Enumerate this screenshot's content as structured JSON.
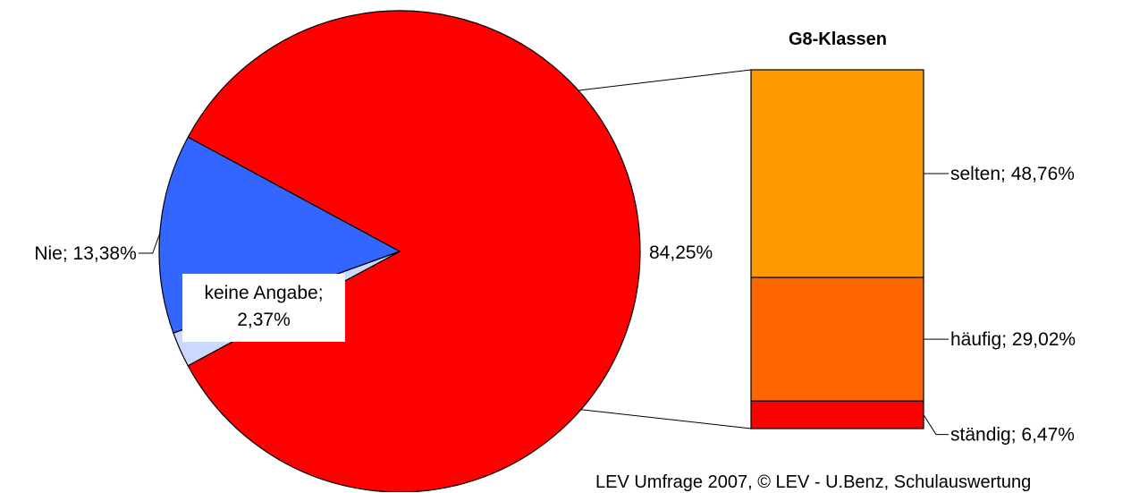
{
  "chart_data": {
    "type": "bar-of-pie",
    "pie": {
      "slices": [
        {
          "label": "",
          "value": 84.25,
          "display": "84,25%",
          "color": "#ff0000"
        },
        {
          "label": "keine Angabe",
          "value": 2.37,
          "display": "keine Angabe;\n2,37%",
          "color": "#ccd9ff"
        },
        {
          "label": "Nie",
          "value": 13.38,
          "display": "Nie; 13,38%",
          "color": "#3366ff"
        }
      ]
    },
    "bar": {
      "title": "G8-Klassen",
      "segments": [
        {
          "label": "selten",
          "value": 48.76,
          "display": "selten; 48,76%",
          "color": "#ff9900"
        },
        {
          "label": "häufig",
          "value": 29.02,
          "display": "häufig; 29,02%",
          "color": "#ff6600"
        },
        {
          "label": "ständig",
          "value": 6.47,
          "display": "ständig; 6,47%",
          "color": "#ff0000"
        }
      ]
    },
    "source": "LEV Umfrage 2007, © LEV - U.Benz, Schulauswertung"
  }
}
